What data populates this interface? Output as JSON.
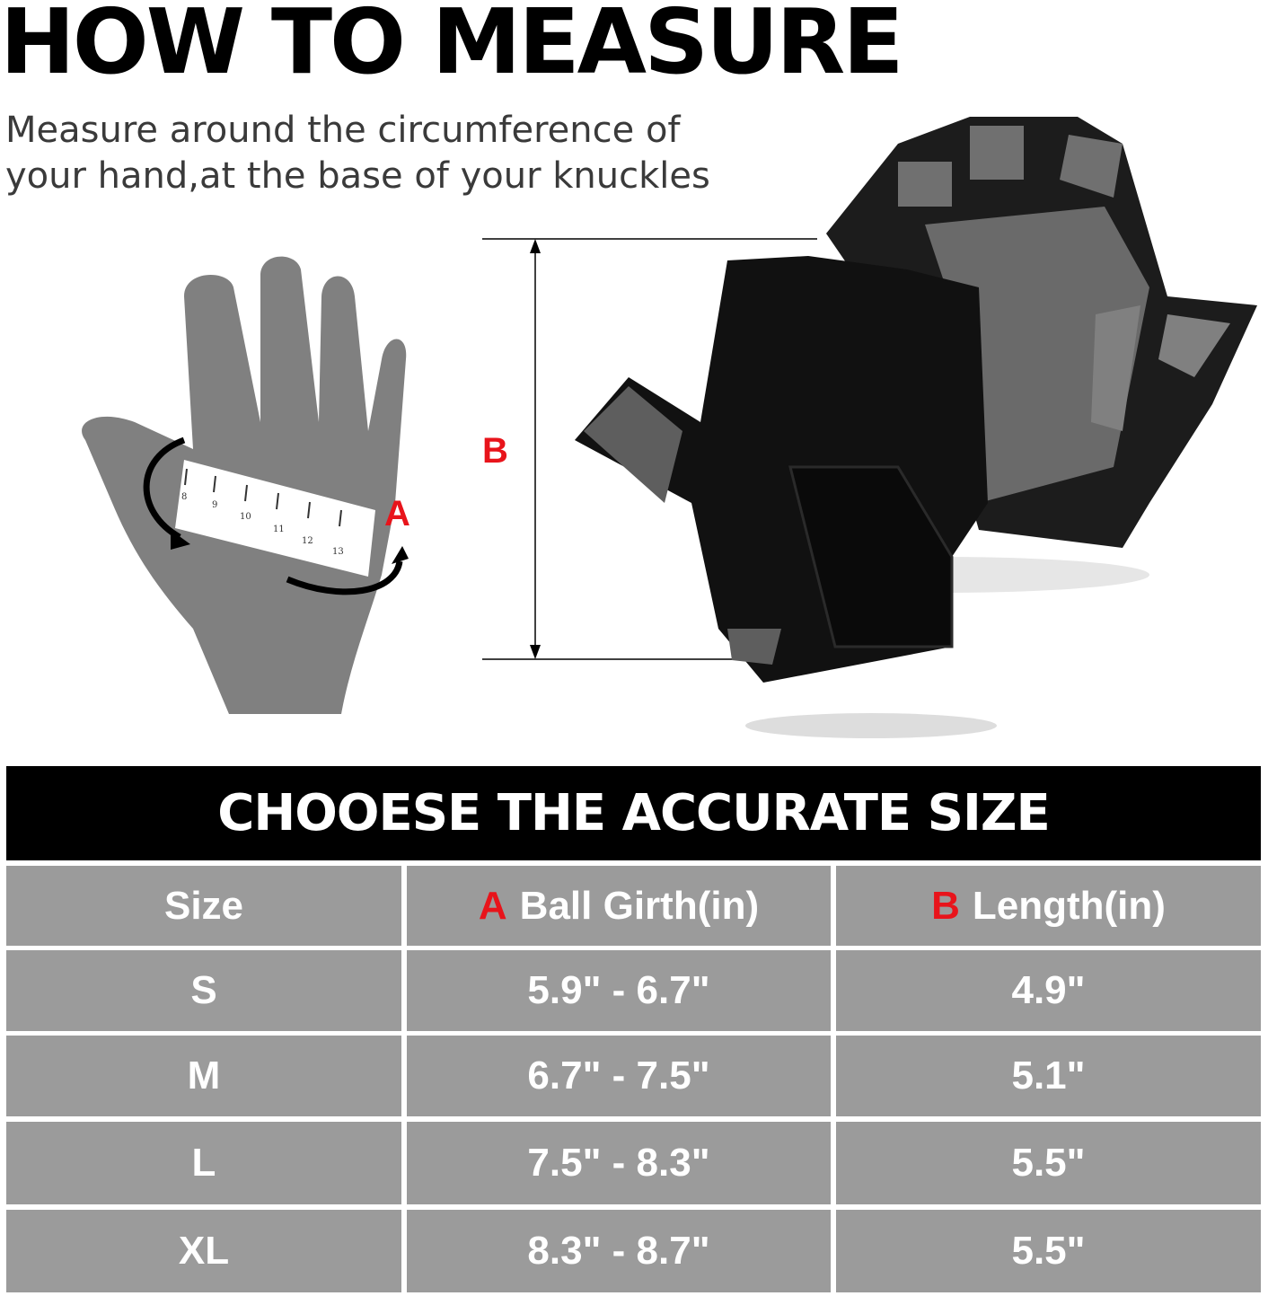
{
  "title": "HOW TO MEASURE",
  "subtitle": "Measure around the circumference of your hand,at the base of your knuckles",
  "diagram": {
    "label_a": "A",
    "label_b": "B",
    "ruler_numbers": [
      "8",
      "9",
      "10",
      "11",
      "12",
      "13"
    ],
    "accent_color": "#e8141b"
  },
  "table": {
    "banner": "CHOOESE THE ACCURATE SIZE",
    "headers": [
      {
        "marker": "",
        "label": "Size"
      },
      {
        "marker": "A",
        "label": "Ball Girth(in)"
      },
      {
        "marker": "B",
        "label": "Length(in)"
      }
    ],
    "rows": [
      [
        "S",
        "5.9\" - 6.7\"",
        "4.9\""
      ],
      [
        "M",
        "6.7\" - 7.5\"",
        "5.1\""
      ],
      [
        "L",
        "7.5\" - 8.3\"",
        "5.5\""
      ],
      [
        "XL",
        "8.3\" - 8.7\"",
        "5.5\""
      ]
    ],
    "cell_color": "#9b9b9b",
    "banner_color": "#000000"
  }
}
